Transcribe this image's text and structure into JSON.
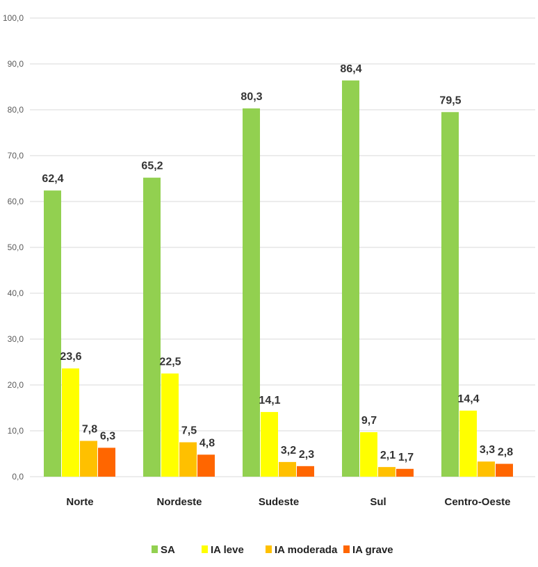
{
  "chart_data": {
    "type": "bar",
    "categories": [
      "Norte",
      "Nordeste",
      "Sudeste",
      "Sul",
      "Centro-Oeste"
    ],
    "series": [
      {
        "name": "SA",
        "color": "#92D050",
        "values": [
          62.4,
          65.2,
          80.3,
          86.4,
          79.5
        ]
      },
      {
        "name": "IA leve",
        "color": "#FFFF00",
        "values": [
          23.6,
          22.5,
          14.1,
          9.7,
          14.4
        ]
      },
      {
        "name": "IA moderada",
        "color": "#FFC000",
        "values": [
          7.8,
          7.5,
          3.2,
          2.1,
          3.3
        ]
      },
      {
        "name": "IA grave",
        "color": "#FF6600",
        "values": [
          6.3,
          4.8,
          2.3,
          1.7,
          2.8
        ]
      }
    ],
    "ylim": [
      0,
      100
    ],
    "yticks": [
      "0,0",
      "10,0",
      "20,0",
      "30,0",
      "40,0",
      "50,0",
      "60,0",
      "70,0",
      "80,0",
      "90,0",
      "100,0"
    ],
    "grid": true,
    "legend": "bottom",
    "title": "",
    "xlabel": "",
    "ylabel": ""
  }
}
